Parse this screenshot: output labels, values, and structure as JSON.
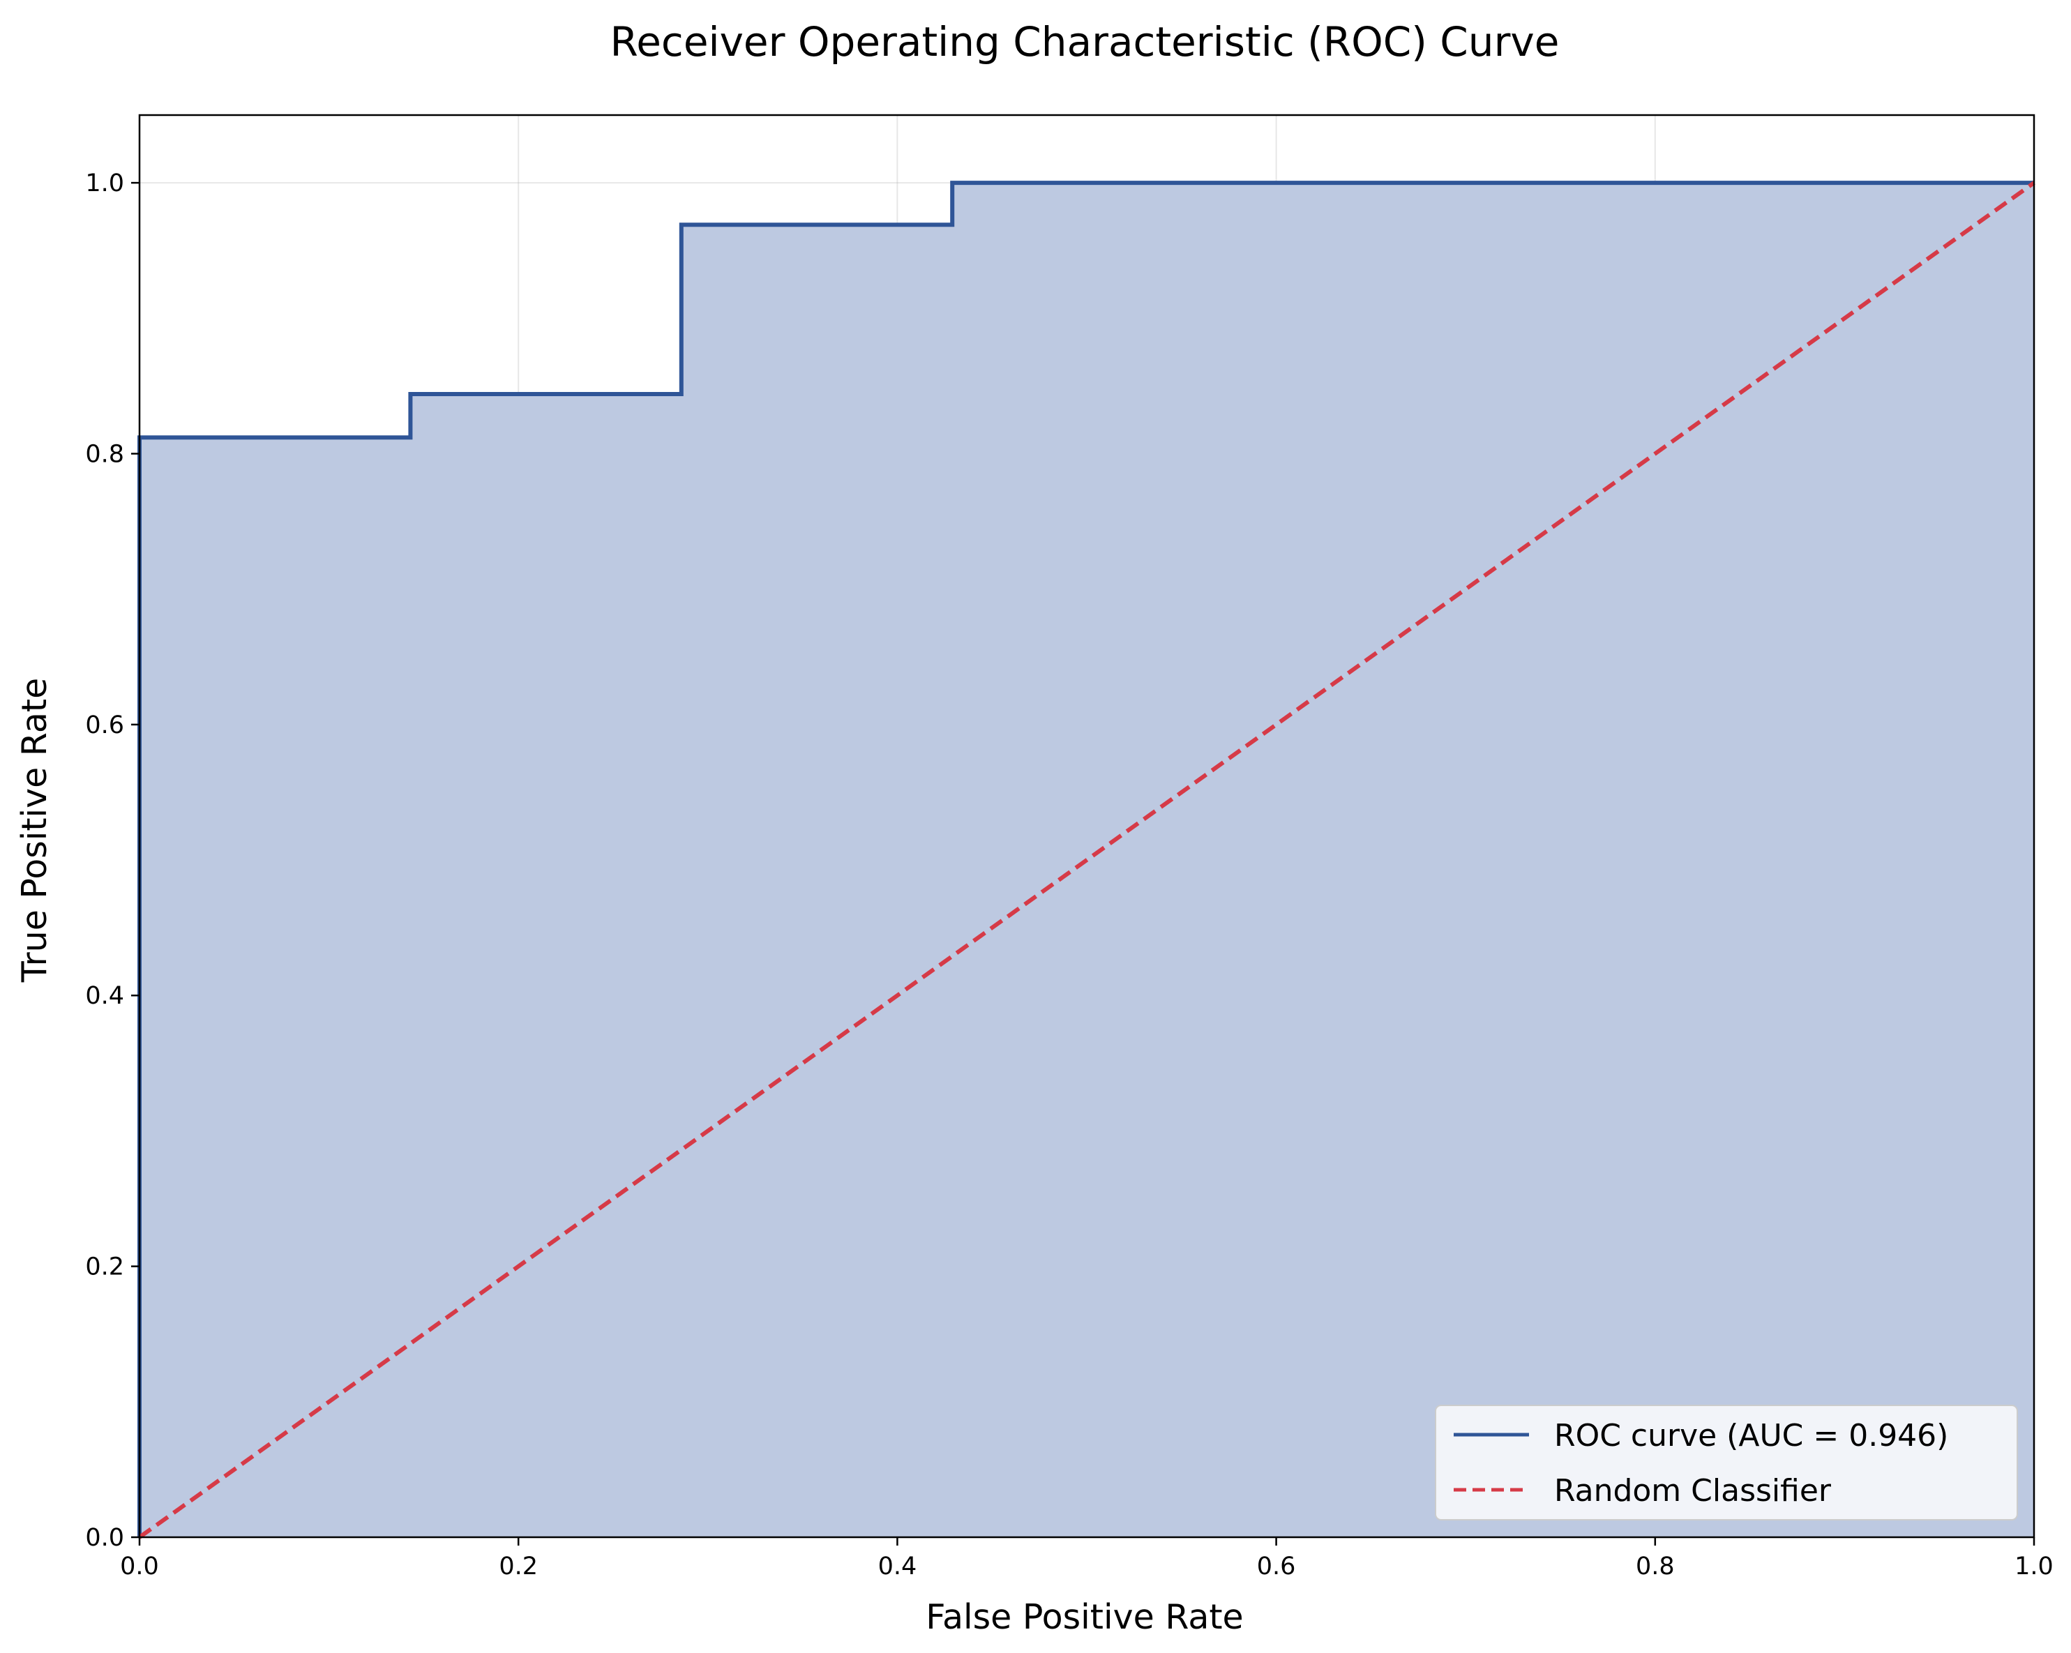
{
  "chart_data": {
    "type": "line",
    "title": "Receiver Operating Characteristic (ROC) Curve",
    "xlabel": "False Positive Rate",
    "ylabel": "True Positive Rate",
    "xlim": [
      0,
      1
    ],
    "ylim": [
      0,
      1.05
    ],
    "x_ticks": [
      "0.0",
      "0.2",
      "0.4",
      "0.6",
      "0.8",
      "1.0"
    ],
    "y_ticks": [
      "0.0",
      "0.2",
      "0.4",
      "0.6",
      "0.8",
      "1.0"
    ],
    "grid": true,
    "legend_position": "lower-right",
    "series": [
      {
        "name": "ROC curve (AUC = 0.946)",
        "style": "step",
        "color": "#2f5597",
        "fill": true,
        "fill_color": "#bdc9e1",
        "x": [
          0.0,
          0.0,
          0.143,
          0.143,
          0.286,
          0.286,
          0.429,
          0.429,
          1.0
        ],
        "y": [
          0.0,
          0.812,
          0.812,
          0.844,
          0.844,
          0.969,
          0.969,
          1.0,
          1.0
        ]
      },
      {
        "name": "Random Classifier",
        "style": "dashed",
        "color": "#d63a47",
        "x": [
          0.0,
          1.0
        ],
        "y": [
          0.0,
          1.0
        ]
      }
    ]
  }
}
